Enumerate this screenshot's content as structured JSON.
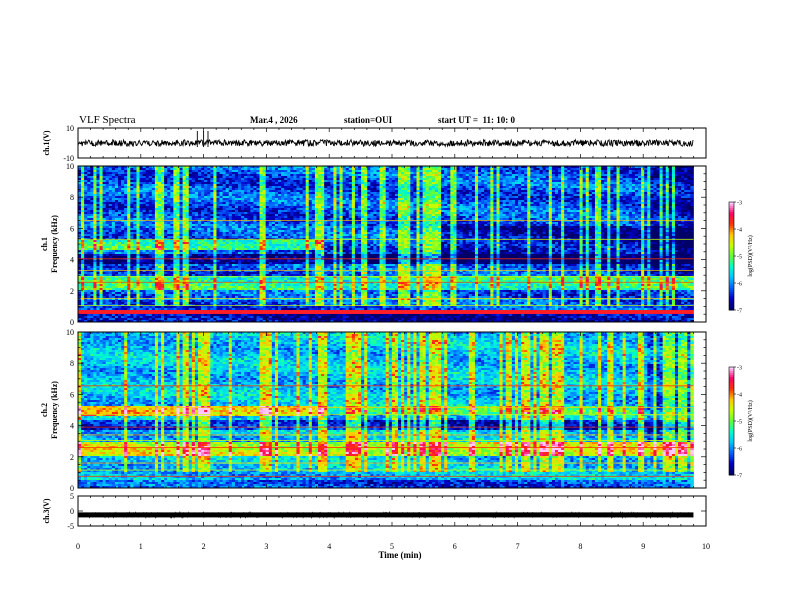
{
  "header": {
    "title": "VLF Spectra",
    "date": "Mar.4 , 2026",
    "station": "station=OUI",
    "start": "start UT =  11: 10: 0"
  },
  "chart_data": [
    {
      "type": "line",
      "panel": "ch1-waveform",
      "ylabel": "ch.1(V)",
      "ylim": [
        -10,
        10
      ],
      "y_ticks": [
        "10",
        "-10"
      ],
      "baseline_value": 0,
      "x_unit": "min",
      "xlim": [
        0,
        10
      ]
    },
    {
      "type": "heatmap",
      "panel": "ch1-spectrogram",
      "ylabel": "ch.1\nFrequency (kHz)",
      "ylabel_lines": [
        "ch.1",
        "Frequency (kHz)"
      ],
      "ylim": [
        0,
        10
      ],
      "y_ticks": [
        "0",
        "2",
        "4",
        "6",
        "8",
        "10"
      ],
      "xlim": [
        0,
        10
      ],
      "colorbar": {
        "label": "log(PSD)(V²/Hz)",
        "range": [
          -7,
          -3
        ],
        "ticks": [
          "-3",
          "-4",
          "-5",
          "-6",
          "-7"
        ]
      },
      "features": [
        {
          "name": "green emission band",
          "freq_khz": [
            4.6,
            5.2
          ],
          "time_min": [
            0,
            3.9
          ]
        },
        {
          "name": "dark band",
          "freq_khz": [
            3.7,
            4.4
          ],
          "time_min": [
            0,
            9.8
          ]
        },
        {
          "name": "green emission band",
          "freq_khz": [
            2.0,
            2.9
          ],
          "time_min": [
            0,
            9.8
          ]
        },
        {
          "name": "red line",
          "freq_khz": [
            0.6,
            0.7
          ],
          "time_min": [
            0,
            9.8
          ]
        }
      ]
    },
    {
      "type": "heatmap",
      "panel": "ch2-spectrogram",
      "ylabel": "ch.2\nFrequency (kHz)",
      "ylabel_lines": [
        "ch.2",
        "Frequency (kHz)"
      ],
      "ylim": [
        0,
        10
      ],
      "y_ticks": [
        "0",
        "2",
        "4",
        "6",
        "8",
        "10"
      ],
      "xlim": [
        0,
        10
      ],
      "colorbar": {
        "label": "log(PSD)(V²/Hz)",
        "range": [
          -7,
          -3
        ],
        "ticks": [
          "-3",
          "-4",
          "-5",
          "-6",
          "-7"
        ]
      },
      "features": [
        {
          "name": "red-orange emission band",
          "freq_khz": [
            4.8,
            5.2
          ],
          "time_min": [
            0,
            3.9
          ]
        },
        {
          "name": "red-orange emission band",
          "freq_khz": [
            2.4,
            2.8
          ],
          "time_min": [
            0,
            3.9
          ]
        },
        {
          "name": "dark band",
          "freq_khz": [
            3.8,
            4.3
          ],
          "time_min": [
            0,
            9.8
          ]
        }
      ]
    },
    {
      "type": "line",
      "panel": "ch3-waveform",
      "ylabel": "ch.3(V)",
      "ylim": [
        -5,
        5
      ],
      "y_ticks": [
        "5",
        "0",
        "-5"
      ],
      "baseline_value": -1.3,
      "x_unit": "min",
      "xlim": [
        0,
        10
      ]
    }
  ],
  "x_axis": {
    "label": "Time (min)",
    "ticks": [
      "0",
      "1",
      "2",
      "3",
      "4",
      "5",
      "6",
      "7",
      "8",
      "9",
      "10"
    ]
  },
  "colors": {
    "frame": "#000000",
    "background": "#ffffff",
    "colormap": [
      "#000068",
      "#0000c8",
      "#0064ff",
      "#00c8ff",
      "#00ffc8",
      "#64ff32",
      "#c8ff00",
      "#ffc800",
      "#ff3200",
      "#ff0064",
      "#ffc8ff"
    ]
  }
}
